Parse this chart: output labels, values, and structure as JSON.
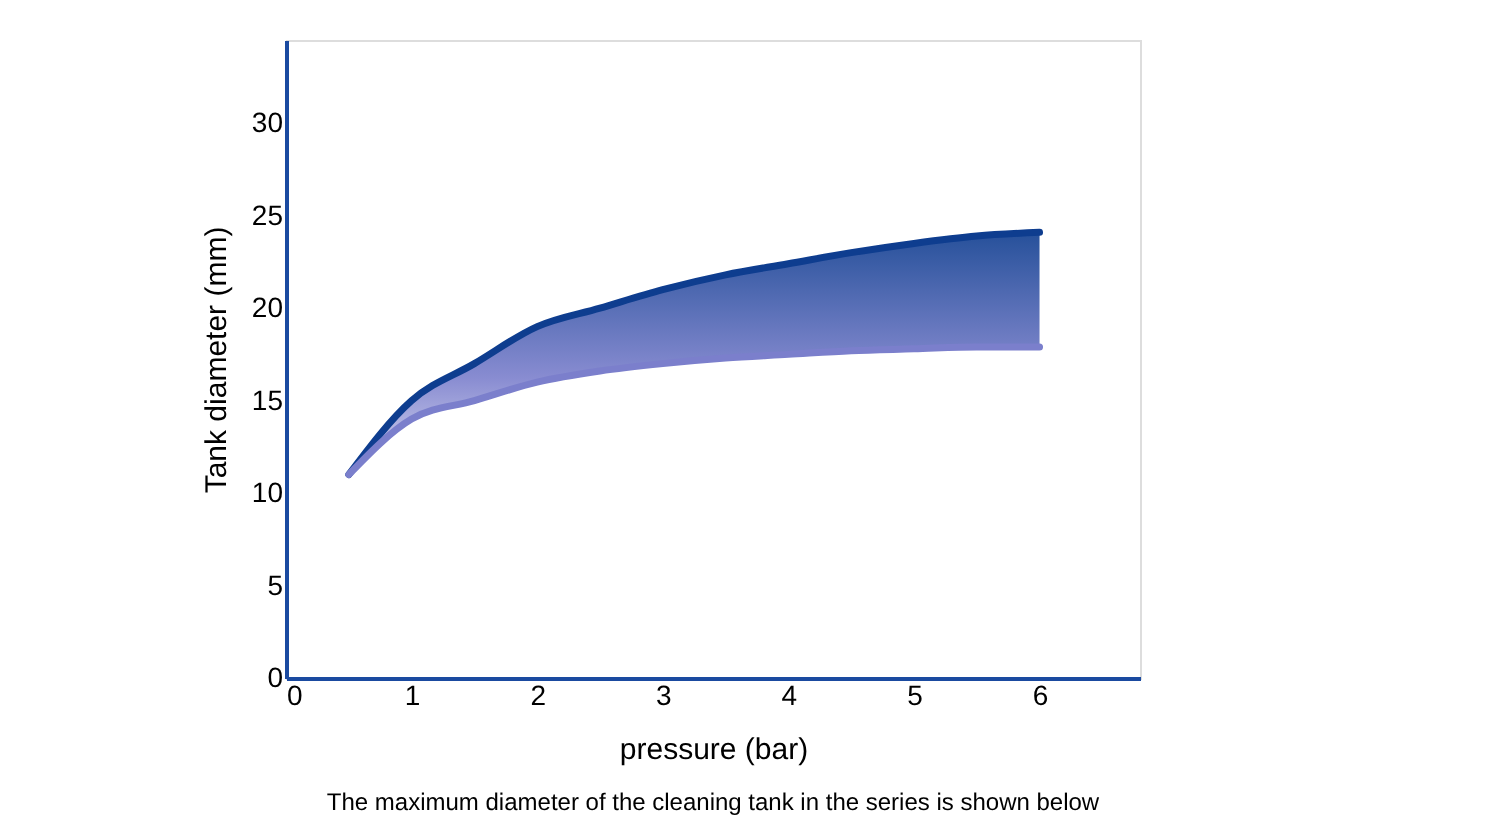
{
  "chart_data": {
    "type": "line",
    "xlabel": "pressure (bar)",
    "ylabel": "Tank diameter (mm)",
    "x": [
      0.5,
      1,
      1.5,
      2,
      2.5,
      3,
      3.5,
      4,
      4.5,
      5,
      5.5,
      6
    ],
    "series": [
      {
        "color": "#0e3d8f",
        "values": [
          11,
          15,
          17,
          19,
          20,
          21,
          21.8,
          22.4,
          23,
          23.5,
          23.9,
          24.1
        ],
        "lower": [
          11,
          14,
          15,
          16,
          16.6,
          17,
          17.3,
          17.5,
          17.7,
          17.8,
          17.9,
          17.9
        ],
        "upper": [
          11,
          15,
          17,
          19,
          20,
          21,
          21.8,
          22.4,
          23,
          23.5,
          23.9,
          24.1
        ]
      },
      {
        "color": "#7b7fcc",
        "values": [
          11,
          14,
          15,
          16,
          16.6,
          17,
          17.3,
          17.5,
          17.7,
          17.8,
          17.9,
          17.9
        ]
      }
    ],
    "xlim": [
      0,
      6.8
    ],
    "ylim": [
      0,
      34.5
    ],
    "xticks": [
      0,
      1,
      2,
      3,
      4,
      5,
      6
    ],
    "yticks": [
      0,
      5,
      10,
      15,
      20,
      25,
      30
    ],
    "grid": false,
    "legend": false,
    "marker": "none",
    "line_style": "solid",
    "annotations": [
      "The maximum diameter of the cleaning tank in the series is shown below"
    ]
  }
}
